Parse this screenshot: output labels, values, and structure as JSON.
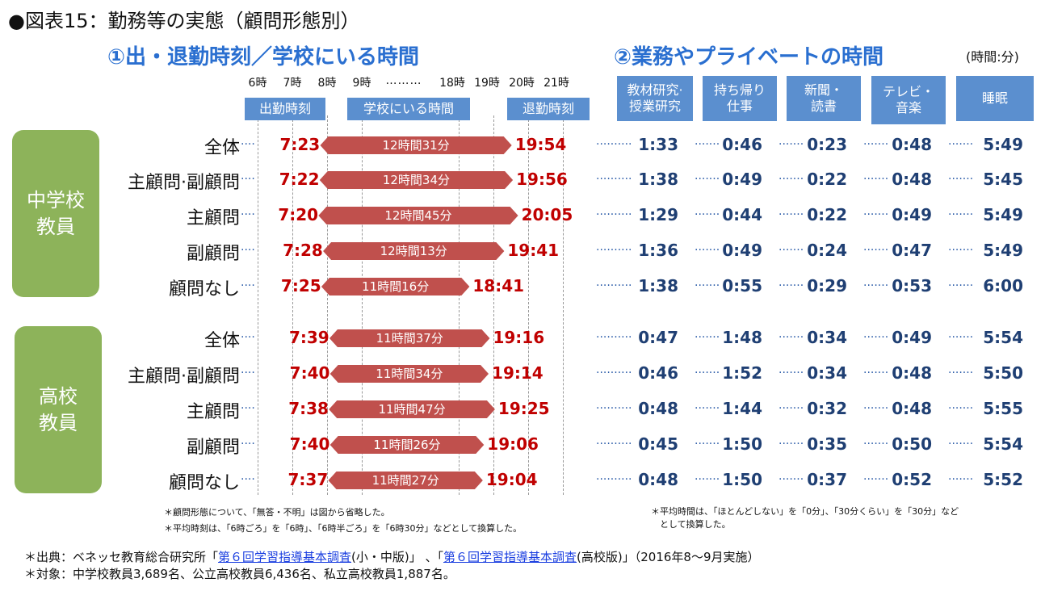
{
  "title": "●図表15：勤務等の実態（顧問形態別）",
  "section1_title": "①出・退勤時刻／学校にいる時間",
  "section2_title": "②業務やプライベートの時間",
  "units_label": "(時間:分)",
  "hour_ticks": [
    "6時",
    "7時",
    "8時",
    "9時",
    "18時",
    "19時",
    "20時",
    "21時"
  ],
  "hour_gap": "………",
  "header_boxes": {
    "start": "出勤時刻",
    "at_school": "学校にいる時間",
    "leave": "退勤時刻"
  },
  "activity_headers": [
    "教材研究·\n授業研究",
    "持ち帰り\n仕事",
    "新聞・\n読書",
    "テレビ・\n音楽",
    "睡眠"
  ],
  "groups": [
    {
      "name": "中学校\n教員"
    },
    {
      "name": "高校\n教員"
    }
  ],
  "leader_short": "····",
  "leader_long": "··········",
  "leader_mid": "·······",
  "chart_data": {
    "type": "table",
    "rows": [
      {
        "group": "中学校教員",
        "label": "全体",
        "start": "7:23",
        "duration": "12時間31分",
        "end": "19:54",
        "activities": [
          "1:33",
          "0:46",
          "0:23",
          "0:48",
          "5:49"
        ]
      },
      {
        "group": "中学校教員",
        "label": "主顧問·副顧問",
        "start": "7:22",
        "duration": "12時間34分",
        "end": "19:56",
        "activities": [
          "1:38",
          "0:49",
          "0:22",
          "0:48",
          "5:45"
        ]
      },
      {
        "group": "中学校教員",
        "label": "主顧問",
        "start": "7:20",
        "duration": "12時間45分",
        "end": "20:05",
        "activities": [
          "1:29",
          "0:44",
          "0:22",
          "0:49",
          "5:49"
        ]
      },
      {
        "group": "中学校教員",
        "label": "副顧問",
        "start": "7:28",
        "duration": "12時間13分",
        "end": "19:41",
        "activities": [
          "1:36",
          "0:49",
          "0:24",
          "0:47",
          "5:49"
        ]
      },
      {
        "group": "中学校教員",
        "label": "顧問なし",
        "start": "7:25",
        "duration": "11時間16分",
        "end": "18:41",
        "activities": [
          "1:38",
          "0:55",
          "0:29",
          "0:53",
          "6:00"
        ]
      },
      {
        "group": "高校教員",
        "label": "全体",
        "start": "7:39",
        "duration": "11時間37分",
        "end": "19:16",
        "activities": [
          "0:47",
          "1:48",
          "0:34",
          "0:49",
          "5:54"
        ]
      },
      {
        "group": "高校教員",
        "label": "主顧問·副顧問",
        "start": "7:40",
        "duration": "11時間34分",
        "end": "19:14",
        "activities": [
          "0:46",
          "1:52",
          "0:34",
          "0:48",
          "5:50"
        ]
      },
      {
        "group": "高校教員",
        "label": "主顧問",
        "start": "7:38",
        "duration": "11時間47分",
        "end": "19:25",
        "activities": [
          "0:48",
          "1:44",
          "0:32",
          "0:48",
          "5:55"
        ]
      },
      {
        "group": "高校教員",
        "label": "副顧問",
        "start": "7:40",
        "duration": "11時間26分",
        "end": "19:06",
        "activities": [
          "0:45",
          "1:50",
          "0:35",
          "0:50",
          "5:54"
        ]
      },
      {
        "group": "高校教員",
        "label": "顧問なし",
        "start": "7:37",
        "duration": "11時間27分",
        "end": "19:04",
        "activities": [
          "0:48",
          "1:50",
          "0:37",
          "0:52",
          "5:52"
        ]
      }
    ]
  },
  "notes_left": [
    "＊顧問形態について、「無答・不明」は図から省略した。",
    "＊平均時刻は、「6時ごろ」を「6時」、「6時半ごろ」を「6時30分」などとして換算した。"
  ],
  "note_right_1": "＊平均時間は、「ほとんどしない」を「0分」、「30分くらい」を「30分」など",
  "note_right_2": "　として換算した。",
  "source": {
    "prefix": "＊出典：ベネッセ教育総合研究所「",
    "link1": "第６回学習指導基本調査",
    "mid1": "(小・中版)」 、「",
    "link2": "第６回学習指導基本調査",
    "mid2": "(高校版)」（2016年8～9月実施）"
  },
  "target": "＊対象：中学校教員3,689名、公立高校教員6,436名、私立高校教員1,887名。",
  "colors": {
    "bar": "#c0504d",
    "header": "#5b8fcf",
    "group": "#8db35a",
    "title": "#2a6fd0",
    "red_time": "#c00000",
    "blue_time": "#1f3f73"
  }
}
